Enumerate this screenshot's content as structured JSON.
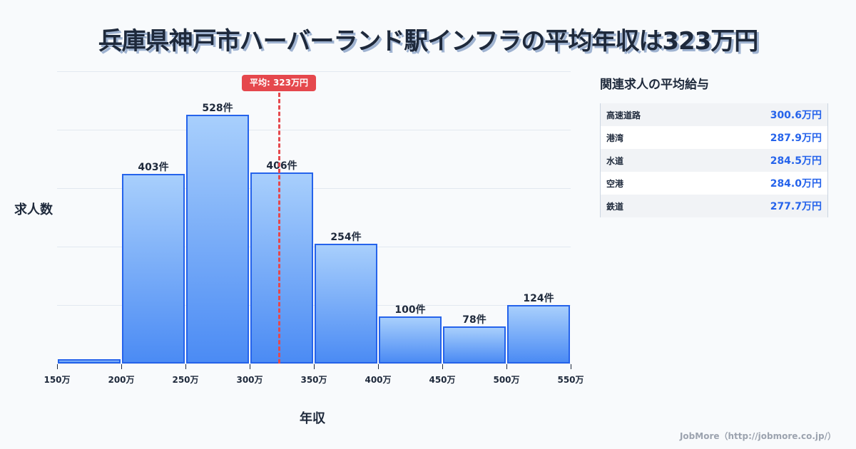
{
  "title": "兵庫県神戸市ハーバーランド駅インフラの平均年収は323万円",
  "chart_data": {
    "type": "bar",
    "title": "兵庫県神戸市ハーバーランド駅インフラの平均年収は323万円",
    "xlabel": "年収",
    "ylabel": "求人数",
    "categories": [
      "150-200万",
      "200-250万",
      "250-300万",
      "300-350万",
      "350-400万",
      "400-450万",
      "450-500万",
      "500-550万"
    ],
    "values": [
      9,
      403,
      528,
      406,
      254,
      100,
      78,
      124
    ],
    "value_labels": [
      "",
      "403件",
      "528件",
      "406件",
      "254件",
      "100件",
      "78件",
      "124件"
    ],
    "x_ticks": [
      "150万",
      "200万",
      "250万",
      "300万",
      "350万",
      "400万",
      "450万",
      "500万",
      "550万"
    ],
    "ylim": [
      0,
      620
    ],
    "grid": true,
    "mean": {
      "value": 323,
      "label": "平均: 323万円",
      "color": "#e5484d"
    },
    "bar_color": "#4b8bf4",
    "bar_border": "#2563eb"
  },
  "axis": {
    "ylabel": "求人数",
    "xlabel": "年収"
  },
  "mean_badge": "平均: 323万円",
  "panel": {
    "title": "関連求人の平均給与",
    "rows": [
      {
        "name": "高速道路",
        "value": "300.6万円"
      },
      {
        "name": "港湾",
        "value": "287.9万円"
      },
      {
        "name": "水道",
        "value": "284.5万円"
      },
      {
        "name": "空港",
        "value": "284.0万円"
      },
      {
        "name": "鉄道",
        "value": "277.7万円"
      }
    ]
  },
  "credit": "JobMore（http://jobmore.co.jp/）"
}
